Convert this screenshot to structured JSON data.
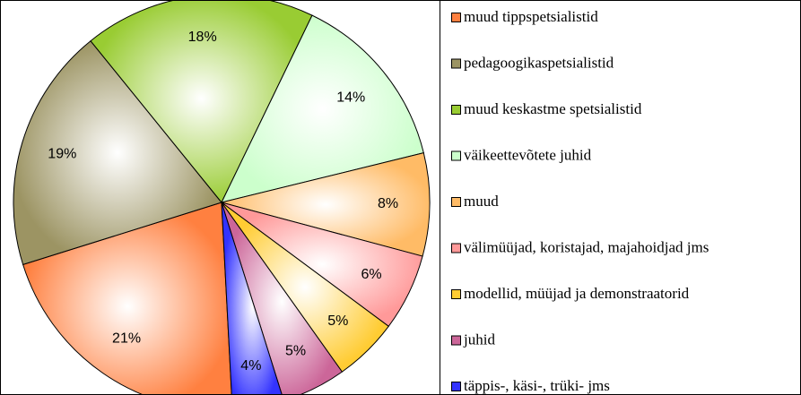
{
  "chart_data": {
    "type": "pie",
    "categories": [
      "muud tippspetsialistid",
      "pedagoogikaspetsialistid",
      "muud keskastme spetsialistid",
      "väikeettevõtete juhid",
      "muud",
      "välimüüjad, koristajad, majahoidjad jms",
      "modellid, müüjad ja demonstraatorid",
      "juhid",
      "täppis-, käsi-, trüki- jms"
    ],
    "values": [
      21,
      19,
      18,
      14,
      8,
      6,
      5,
      5,
      4
    ],
    "value_labels": [
      "21%",
      "19%",
      "18%",
      "14%",
      "8%",
      "6%",
      "5%",
      "5%",
      "4%"
    ],
    "colors": [
      "#ff8040",
      "#9c9463",
      "#99cc33",
      "#ccffcc",
      "#ffbb66",
      "#ff9999",
      "#ffcc33",
      "#cc6699",
      "#3333ff"
    ],
    "legend": "right"
  }
}
